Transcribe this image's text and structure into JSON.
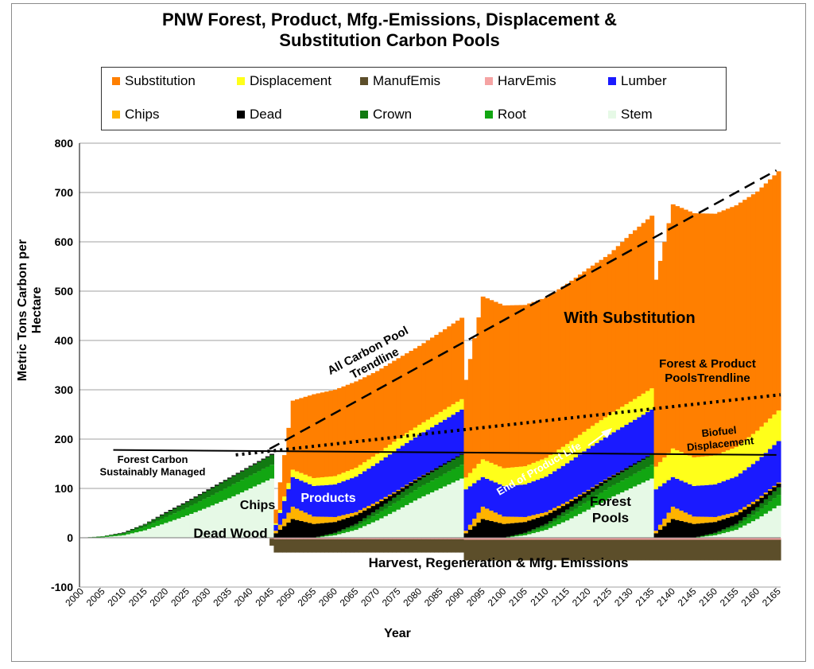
{
  "chart_data": {
    "type": "area",
    "stacked": true,
    "title": "PNW Forest, Product, Mfg.-Emissions, Displacement & Substitution Carbon Pools",
    "title_lines": [
      "PNW Forest, Product, Mfg.-Emissions, Displacement &",
      "Substitution Carbon Pools"
    ],
    "xlabel": "Year",
    "ylabel": "Metric Tons Carbon per Hectare",
    "xlim": [
      2000,
      2166
    ],
    "ylim": [
      -100,
      800
    ],
    "yticks": [
      -100,
      0,
      100,
      200,
      300,
      400,
      500,
      600,
      700,
      800
    ],
    "xticks": [
      2000,
      2005,
      2010,
      2015,
      2020,
      2025,
      2030,
      2035,
      2040,
      2045,
      2050,
      2055,
      2060,
      2065,
      2070,
      2075,
      2080,
      2085,
      2090,
      2095,
      2100,
      2105,
      2110,
      2115,
      2120,
      2125,
      2130,
      2135,
      2140,
      2145,
      2150,
      2155,
      2160,
      2165
    ],
    "grid": "horizontal",
    "legend_position": "top",
    "legend": [
      {
        "label": "Substitution",
        "color": "#ff7f00"
      },
      {
        "label": "Displacement",
        "color": "#ffff1a"
      },
      {
        "label": "ManufEmis",
        "color": "#5c4e2a"
      },
      {
        "label": "HarvEmis",
        "color": "#f5a3a3"
      },
      {
        "label": "Lumber",
        "color": "#1a1aff"
      },
      {
        "label": "Chips",
        "color": "#ffb300"
      },
      {
        "label": "Dead",
        "color": "#000000"
      },
      {
        "label": "Crown",
        "color": "#127a12"
      },
      {
        "label": "Root",
        "color": "#12a612"
      },
      {
        "label": "Stem",
        "color": "#e6f9e6"
      }
    ],
    "harvest_years": [
      2045,
      2090,
      2135
    ],
    "series": [
      {
        "name": "Stem",
        "x": [
          2000,
          2005,
          2010,
          2015,
          2020,
          2025,
          2030,
          2035,
          2040,
          2045,
          2055,
          2060,
          2065,
          2070,
          2075,
          2080,
          2085,
          2090,
          2100,
          2105,
          2110,
          2115,
          2120,
          2125,
          2130,
          2135,
          2145,
          2150,
          2155,
          2160,
          2165
        ],
        "values": [
          0,
          1,
          5,
          15,
          30,
          45,
          62,
          80,
          100,
          120,
          0,
          5,
          16,
          35,
          57,
          80,
          100,
          120,
          0,
          5,
          16,
          35,
          57,
          80,
          100,
          120,
          0,
          5,
          16,
          38,
          65
        ]
      },
      {
        "name": "Root",
        "x": [
          2000,
          2005,
          2010,
          2015,
          2020,
          2025,
          2030,
          2035,
          2040,
          2045,
          2055,
          2060,
          2065,
          2070,
          2075,
          2080,
          2085,
          2090,
          2100,
          2105,
          2110,
          2115,
          2120,
          2125,
          2130,
          2135,
          2145,
          2150,
          2155,
          2160,
          2165
        ],
        "values": [
          0,
          1,
          3,
          7,
          12,
          16,
          20,
          24,
          26,
          28,
          0,
          3,
          7,
          13,
          18,
          22,
          25,
          28,
          0,
          3,
          7,
          13,
          18,
          22,
          25,
          28,
          0,
          3,
          7,
          14,
          22
        ]
      },
      {
        "name": "Crown",
        "x": [
          2000,
          2005,
          2010,
          2015,
          2020,
          2025,
          2030,
          2035,
          2040,
          2045,
          2055,
          2060,
          2065,
          2070,
          2075,
          2080,
          2085,
          2090,
          2100,
          2105,
          2110,
          2115,
          2120,
          2125,
          2130,
          2135,
          2145,
          2150,
          2155,
          2160,
          2165
        ],
        "values": [
          0,
          1,
          2,
          5,
          8,
          11,
          14,
          16,
          18,
          20,
          0,
          2,
          5,
          9,
          12,
          15,
          18,
          20,
          0,
          2,
          5,
          9,
          12,
          15,
          18,
          20,
          0,
          2,
          5,
          10,
          15
        ]
      },
      {
        "name": "Dead",
        "x": [
          2000,
          2005,
          2010,
          2015,
          2020,
          2025,
          2030,
          2035,
          2040,
          2045,
          2050,
          2055,
          2060,
          2065,
          2070,
          2075,
          2080,
          2085,
          2090,
          2095,
          2100,
          2105,
          2110,
          2115,
          2120,
          2125,
          2130,
          2135,
          2140,
          2145,
          2150,
          2155,
          2160,
          2165
        ],
        "values": [
          0,
          0,
          1,
          1,
          2,
          2,
          2,
          2,
          2,
          2,
          38,
          28,
          22,
          18,
          12,
          8,
          5,
          3,
          2,
          38,
          28,
          22,
          18,
          12,
          8,
          5,
          3,
          2,
          38,
          28,
          22,
          18,
          12,
          8
        ]
      },
      {
        "name": "Chips",
        "x": [
          2045,
          2050,
          2055,
          2060,
          2065,
          2070,
          2075,
          2080,
          2085,
          2090,
          2095,
          2100,
          2105,
          2110,
          2115,
          2120,
          2125,
          2130,
          2135,
          2140,
          2145,
          2150,
          2155,
          2160,
          2165
        ],
        "values": [
          0,
          25,
          15,
          10,
          6,
          4,
          2,
          1,
          0,
          0,
          25,
          15,
          10,
          6,
          4,
          2,
          1,
          0,
          0,
          25,
          15,
          10,
          6,
          4,
          2
        ]
      },
      {
        "name": "Lumber",
        "x": [
          2045,
          2050,
          2055,
          2060,
          2065,
          2070,
          2075,
          2080,
          2085,
          2090,
          2095,
          2100,
          2105,
          2110,
          2115,
          2120,
          2125,
          2130,
          2135,
          2140,
          2145,
          2150,
          2155,
          2160,
          2165
        ],
        "values": [
          0,
          60,
          62,
          66,
          72,
          78,
          84,
          86,
          88,
          90,
          60,
          62,
          66,
          72,
          78,
          84,
          86,
          88,
          90,
          60,
          62,
          66,
          72,
          78,
          84
        ]
      },
      {
        "name": "Displacement",
        "x": [
          2045,
          2050,
          2055,
          2060,
          2065,
          2070,
          2075,
          2080,
          2085,
          2090,
          2095,
          2100,
          2105,
          2110,
          2115,
          2120,
          2125,
          2130,
          2135,
          2140,
          2145,
          2150,
          2155,
          2160,
          2165
        ],
        "values": [
          0,
          15,
          16,
          17,
          18,
          19,
          20,
          20,
          21,
          21,
          36,
          36,
          37,
          38,
          39,
          40,
          41,
          42,
          43,
          58,
          58,
          59,
          60,
          61,
          62
        ]
      },
      {
        "name": "Substitution",
        "x": [
          2045,
          2050,
          2055,
          2060,
          2065,
          2070,
          2075,
          2080,
          2085,
          2090,
          2095,
          2100,
          2105,
          2110,
          2115,
          2120,
          2125,
          2130,
          2135,
          2140,
          2145,
          2150,
          2155,
          2160,
          2165
        ],
        "values": [
          0,
          140,
          170,
          175,
          175,
          168,
          163,
          160,
          162,
          165,
          330,
          330,
          327,
          325,
          325,
          325,
          325,
          340,
          350,
          495,
          495,
          490,
          490,
          485,
          485
        ]
      },
      {
        "name": "HarvEmis",
        "x": [
          2045,
          2090,
          2135,
          2165
        ],
        "values": [
          -2,
          -3,
          -4,
          -4
        ]
      },
      {
        "name": "ManufEmis",
        "x": [
          2045,
          2090,
          2135,
          2165
        ],
        "values": [
          -16,
          -30,
          -46,
          -46
        ]
      }
    ],
    "trendlines": [
      {
        "name": "All Carbon Pool Trendline",
        "style": "dashed",
        "x": [
          2045,
          2165
        ],
        "y": [
          180,
          745
        ]
      },
      {
        "name": "Forest & Product Pools Trendline",
        "style": "dotted",
        "x": [
          2037,
          2166
        ],
        "y": [
          168,
          290
        ]
      },
      {
        "name": "Forest Carbon Sustainably Managed",
        "style": "solid",
        "x": [
          2008,
          2165
        ],
        "y": [
          178,
          168
        ]
      }
    ],
    "annotations": [
      {
        "id": "all_trend",
        "lines": [
          "All Carbon Pool",
          "Trendline"
        ]
      },
      {
        "id": "with_sub",
        "lines": [
          "With Substitution"
        ]
      },
      {
        "id": "fp_trend",
        "lines": [
          "Forest & Product",
          "PoolsTrendline"
        ]
      },
      {
        "id": "biofuel",
        "lines": [
          "Biofuel",
          "Displacement"
        ]
      },
      {
        "id": "end_life",
        "lines": [
          "End of Product Life"
        ]
      },
      {
        "id": "fcsm",
        "lines": [
          "Forest Carbon",
          "Sustainably Managed"
        ]
      },
      {
        "id": "chips",
        "lines": [
          "Chips"
        ]
      },
      {
        "id": "products",
        "lines": [
          "Products"
        ]
      },
      {
        "id": "forest_pools",
        "lines": [
          "Forest",
          "Pools"
        ]
      },
      {
        "id": "dead_wood",
        "lines": [
          "Dead Wood"
        ]
      },
      {
        "id": "harvest",
        "lines": [
          "Harvest, Regeneration & Mfg. Emissions"
        ]
      }
    ]
  }
}
